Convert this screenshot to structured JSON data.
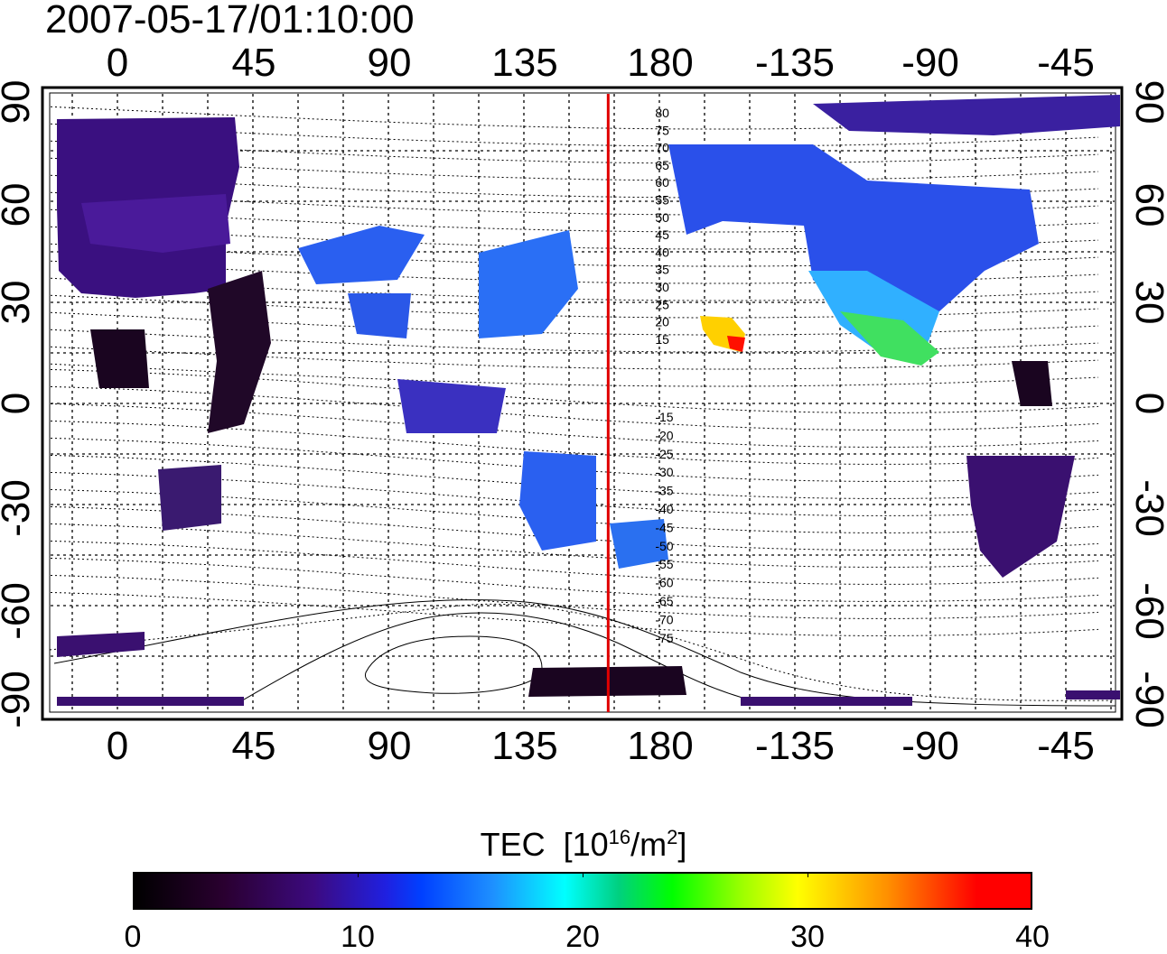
{
  "timestamp": "2007-05-17/01:10:00",
  "axes": {
    "lon_ticks": [
      "0",
      "45",
      "90",
      "135",
      "180",
      "-135",
      "-90",
      "-45"
    ],
    "lat_ticks": [
      "90",
      "60",
      "30",
      "0",
      "-30",
      "-60",
      "-90"
    ]
  },
  "contour_labels": {
    "north": [
      "80",
      "75",
      "70",
      "65",
      "60",
      "55",
      "50",
      "45",
      "40",
      "35",
      "30",
      "25",
      "20",
      "15"
    ],
    "south": [
      "-15",
      "-20",
      "-25",
      "-30",
      "-35",
      "-40",
      "-45",
      "-50",
      "-55",
      "-60",
      "-65",
      "-70",
      "-75"
    ]
  },
  "meridian_marker": {
    "longitude": 163,
    "color": "#e00000"
  },
  "colorbar": {
    "title": "TEC",
    "unit_base": "[10",
    "unit_exp": "16",
    "unit_mid": "/m",
    "unit_exp2": "2",
    "unit_end": "]",
    "ticks": [
      "0",
      "10",
      "20",
      "30",
      "40"
    ],
    "range": [
      0,
      40
    ]
  },
  "colors": {
    "low": "#000000",
    "purple": "#3c0a80",
    "blue": "#2020e0",
    "cyan": "#00ffff",
    "green": "#00ff00",
    "yellow": "#ffff00",
    "red": "#ff0000"
  }
}
